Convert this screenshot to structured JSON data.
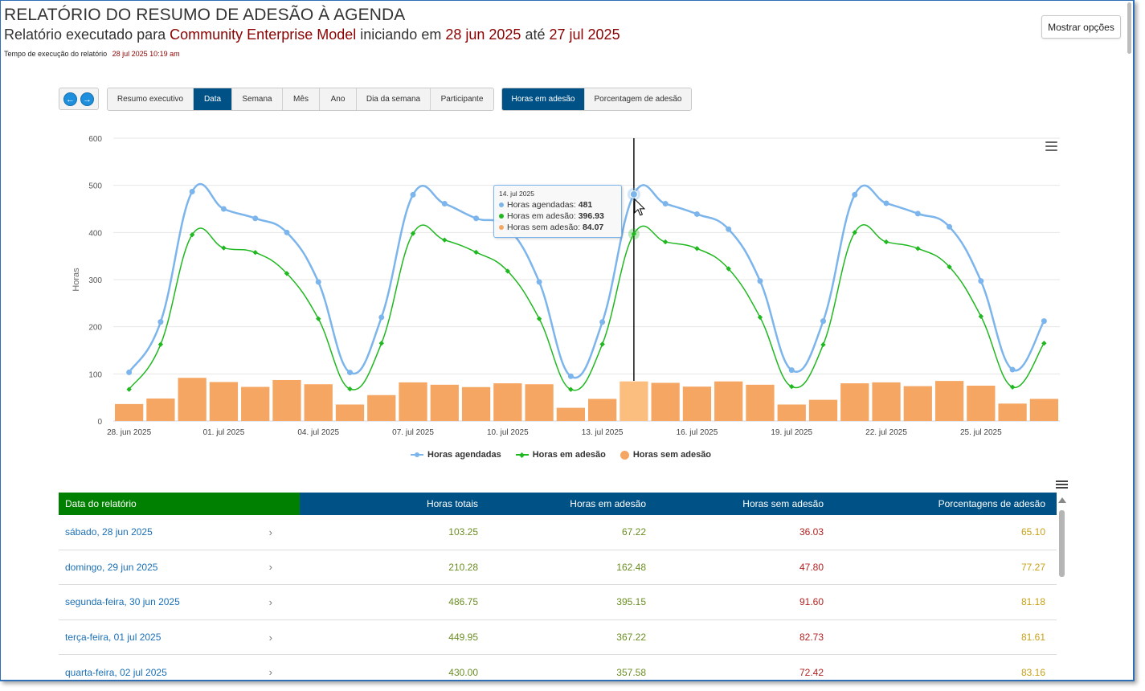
{
  "header": {
    "title": "RELATÓRIO DO RESUMO DE ADESÃO À AGENDA",
    "subtitle_prefix": "Relatório executado para",
    "subtitle_org": "Community Enterprise Model",
    "subtitle_mid": "iniciando em",
    "subtitle_start": "28 jun 2025",
    "subtitle_until": "até",
    "subtitle_end": "27 jul 2025",
    "exec_label": "Tempo de execução do relatório",
    "exec_value": "28 jul 2025 10:19 am",
    "show_options": "Mostrar opções"
  },
  "toolbar": {
    "prev_icon": "arrow-left-icon",
    "next_icon": "arrow-right-icon",
    "views": [
      "Resumo executivo",
      "Data",
      "Semana",
      "Mês",
      "Ano",
      "Dia da semana",
      "Participante"
    ],
    "active_view": "Data",
    "metrics": [
      "Horas em adesão",
      "Porcentagem de adesão"
    ],
    "active_metric": "Horas em adesão"
  },
  "chart_data": {
    "type": "line",
    "ylabel": "Horas",
    "ylim": [
      0,
      600
    ],
    "yticks": [
      0,
      100,
      200,
      300,
      400,
      500,
      600
    ],
    "x": [
      "28 jun",
      "29 jun",
      "30 jun",
      "01 jul",
      "02 jul",
      "03 jul",
      "04 jul",
      "05 jul",
      "06 jul",
      "07 jul",
      "08 jul",
      "09 jul",
      "10 jul",
      "11 jul",
      "12 jul",
      "13 jul",
      "14 jul",
      "15 jul",
      "16 jul",
      "17 jul",
      "18 jul",
      "19 jul",
      "20 jul",
      "21 jul",
      "22 jul",
      "23 jul",
      "24 jul",
      "25 jul",
      "26 jul",
      "27 jul"
    ],
    "xtick_labels": [
      "28. jun 2025",
      "01. jul 2025",
      "04. jul 2025",
      "07. jul 2025",
      "10. jul 2025",
      "13. jul 2025",
      "16. jul 2025",
      "19. jul 2025",
      "22. jul 2025",
      "25. jul 2025"
    ],
    "xtick_indices": [
      0,
      3,
      6,
      9,
      12,
      15,
      18,
      21,
      24,
      27
    ],
    "series": [
      {
        "name": "Horas agendadas",
        "kind": "spline",
        "color": "#7cb5ec",
        "values": [
          103.25,
          210.28,
          486.75,
          449.95,
          430,
          400,
          295,
          103,
          220,
          480,
          461,
          430,
          410,
          295,
          95,
          210,
          481,
          461,
          439,
          407,
          297,
          108,
          212,
          480,
          462,
          440,
          412,
          297,
          109,
          212
        ]
      },
      {
        "name": "Horas em adesão",
        "kind": "spline",
        "color": "#20b820",
        "values": [
          67.22,
          162.48,
          395.15,
          367.22,
          357.58,
          313,
          217,
          68,
          165,
          398,
          384,
          358,
          318,
          217,
          67,
          163,
          396.93,
          380,
          366,
          323,
          220,
          73,
          162,
          400,
          380,
          366,
          327,
          222,
          72,
          165
        ]
      },
      {
        "name": "Horas sem adesão",
        "kind": "column",
        "color": "#f5a662",
        "values": [
          36.03,
          47.8,
          91.6,
          82.73,
          72.42,
          87,
          78,
          35,
          55,
          82,
          77,
          72,
          80,
          78,
          28,
          47,
          84.07,
          81,
          73,
          84,
          77,
          35,
          45,
          80,
          82,
          74,
          85,
          75,
          37,
          47
        ]
      }
    ],
    "highlight_index": 16,
    "legend_position": "bottom-center",
    "grid": true
  },
  "tooltip": {
    "date": "14. jul 2025",
    "rows": [
      {
        "label": "Horas agendadas:",
        "value": "481",
        "color": "#7cb5ec"
      },
      {
        "label": "Horas em adesão:",
        "value": "396.93",
        "color": "#20b820"
      },
      {
        "label": "Horas sem adesão:",
        "value": "84.07",
        "color": "#f5a662"
      }
    ]
  },
  "table": {
    "headers": [
      "Data do relatório",
      "Horas totais",
      "Horas em adesão",
      "Horas sem adesão",
      "Porcentagens de adesão"
    ],
    "rows": [
      {
        "date": "sábado, 28 jun 2025",
        "total": "103.25",
        "adh": "67.22",
        "non": "36.03",
        "pct": "65.10"
      },
      {
        "date": "domingo, 29 jun 2025",
        "total": "210.28",
        "adh": "162.48",
        "non": "47.80",
        "pct": "77.27"
      },
      {
        "date": "segunda-feira, 30 jun 2025",
        "total": "486.75",
        "adh": "395.15",
        "non": "91.60",
        "pct": "81.18"
      },
      {
        "date": "terça-feira, 01 jul 2025",
        "total": "449.95",
        "adh": "367.22",
        "non": "82.73",
        "pct": "81.61"
      },
      {
        "date": "quarta-feira, 02 jul 2025",
        "total": "430.00",
        "adh": "357.58",
        "non": "72.42",
        "pct": "83.16"
      }
    ]
  }
}
